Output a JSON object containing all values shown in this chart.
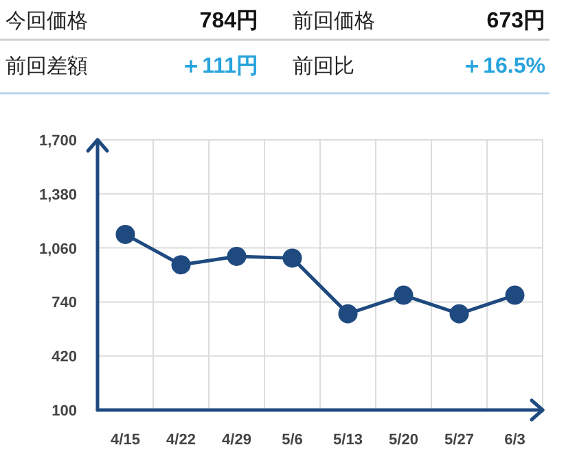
{
  "chart_data": [
    {
      "type": "other",
      "annotations": [
        "今回価格",
        "784円",
        "前回価格",
        "673円",
        "前回差額",
        "＋111円",
        "前回比",
        "＋16.5%"
      ]
    },
    {
      "type": "line",
      "categories": [
        "4/15",
        "4/22",
        "4/29",
        "5/6",
        "5/13",
        "5/20",
        "5/27",
        "6/3"
      ],
      "series": [
        {
          "color": "#1f4a80",
          "values": [
            1140,
            960,
            1010,
            1000,
            670,
            780,
            670,
            780
          ]
        }
      ],
      "ylim": [
        100,
        1700
      ],
      "yticks": [
        100,
        420,
        740,
        {
          "value": 1060,
          "label": "1,060"
        },
        {
          "value": 1380,
          "label": "1,380"
        },
        {
          "value": 1700,
          "label": "1,700"
        }
      ],
      "grid": true,
      "marker": "circle"
    }
  ]
}
